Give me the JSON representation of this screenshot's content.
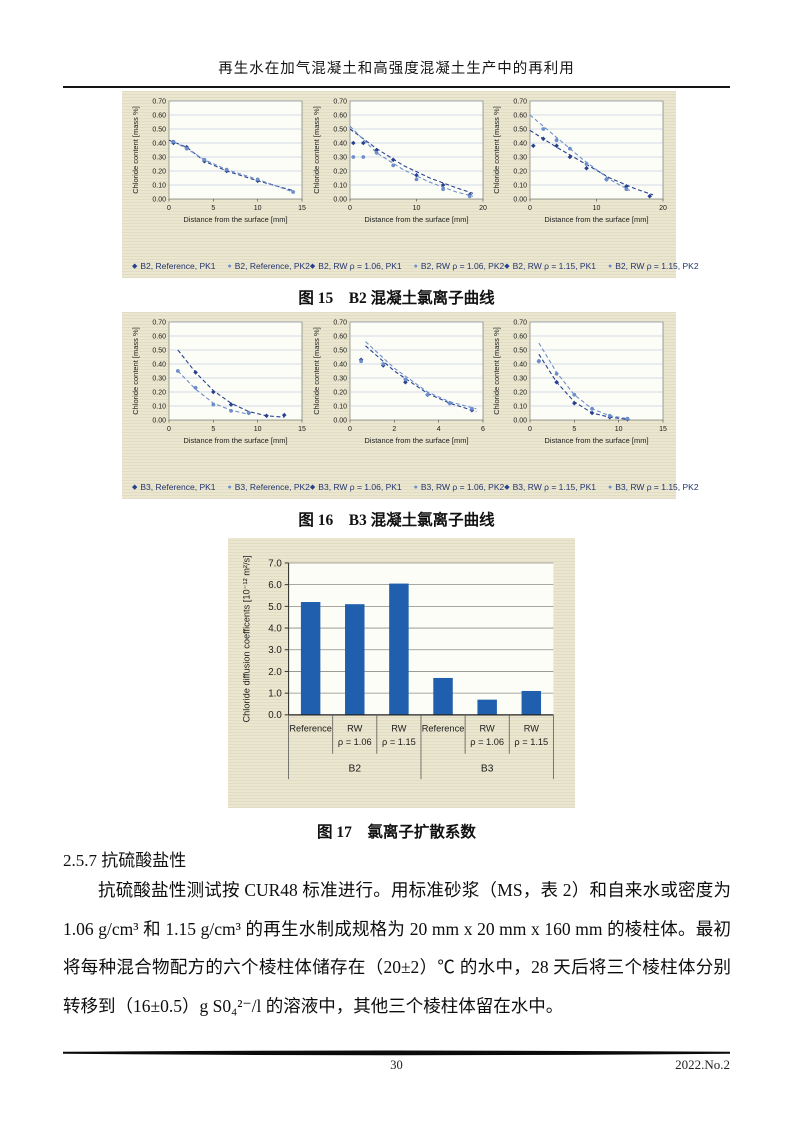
{
  "page": {
    "header_title": "再生水在加气混凝土和高强度混凝土生产中的再利用",
    "footer": {
      "page_number": "30",
      "issue": "2022.No.2"
    }
  },
  "figures": {
    "fig15": {
      "caption": "图 15　B2 混凝土氯离子曲线"
    },
    "fig16": {
      "caption": "图 16　B3 混凝土氯离子曲线"
    },
    "fig17": {
      "caption": "图 17　氯离子扩散系数"
    }
  },
  "section": {
    "heading": "2.5.7 抗硫酸盐性",
    "paragraph": "抗硫酸盐性测试按 CUR48 标准进行。用标准砂浆（MS，表 2）和自来水或密度为 1.06 g/cm³ 和 1.15 g/cm³ 的再生水制成规格为 20 mm x 20 mm x 160 mm 的棱柱体。最初将每种混合物配方的六个棱柱体储存在（20±2）℃ 的水中，28 天后将三个棱柱体分别转移到（16±0.5）g S0₄²⁻/l 的溶液中，其他三个棱柱体留在水中。"
  },
  "colors": {
    "pk1_series": "#27418f",
    "pk2_series": "#6d8ec9",
    "bar_blue": "#1f5fae",
    "panel_beige": "#eae6cf"
  },
  "chart_data": [
    {
      "type": "scatter",
      "xlabel": "Distance from the surface [mm]",
      "ylabel": "Chloride content [mass %]",
      "xlim": [
        0,
        15
      ],
      "xticks": [
        0,
        5,
        10,
        15
      ],
      "ylim": [
        0,
        0.7
      ],
      "yticks": [
        0.0,
        0.1,
        0.2,
        0.3,
        0.4,
        0.5,
        0.6,
        0.7
      ],
      "series": [
        {
          "name": "B2, Reference, PK1",
          "marker": "diamond",
          "color": "#27418f",
          "points": [
            [
              0.5,
              0.4
            ],
            [
              2,
              0.37
            ],
            [
              4,
              0.27
            ],
            [
              6.5,
              0.2
            ],
            [
              10,
              0.13
            ]
          ],
          "line": [
            [
              0,
              0.42
            ],
            [
              2,
              0.37
            ],
            [
              4,
              0.27
            ],
            [
              6.5,
              0.2
            ],
            [
              10,
              0.13
            ],
            [
              14,
              0.06
            ]
          ]
        },
        {
          "name": "B2, Reference, PK2",
          "marker": "circle",
          "color": "#6d8ec9",
          "points": [
            [
              0.5,
              0.41
            ],
            [
              2,
              0.36
            ],
            [
              4,
              0.28
            ],
            [
              6.5,
              0.21
            ],
            [
              10,
              0.14
            ],
            [
              14,
              0.05
            ]
          ]
        }
      ]
    },
    {
      "type": "scatter",
      "xlabel": "Distance from the surface [mm]",
      "ylabel": "Chloride content [mass %]",
      "xlim": [
        0,
        20
      ],
      "xticks": [
        0,
        10,
        20
      ],
      "ylim": [
        0,
        0.7
      ],
      "yticks": [
        0.0,
        0.1,
        0.2,
        0.3,
        0.4,
        0.5,
        0.6,
        0.7
      ],
      "series": [
        {
          "name": "B2, RW ρ = 1.06, PK1",
          "marker": "diamond",
          "color": "#27418f",
          "points": [
            [
              0.5,
              0.4
            ],
            [
              2,
              0.4
            ],
            [
              4,
              0.35
            ],
            [
              6.5,
              0.28
            ],
            [
              10,
              0.17
            ],
            [
              14,
              0.1
            ],
            [
              18,
              0.03
            ]
          ],
          "line": [
            [
              0,
              0.5
            ],
            [
              4,
              0.36
            ],
            [
              8,
              0.24
            ],
            [
              12,
              0.15
            ],
            [
              16,
              0.08
            ],
            [
              18.5,
              0.04
            ]
          ]
        },
        {
          "name": "B2, RW ρ = 1.06, PK2",
          "marker": "circle",
          "color": "#6d8ec9",
          "points": [
            [
              0.5,
              0.3
            ],
            [
              2,
              0.3
            ],
            [
              4,
              0.33
            ],
            [
              6.5,
              0.24
            ],
            [
              10,
              0.14
            ],
            [
              14,
              0.07
            ],
            [
              18,
              0.02
            ]
          ],
          "line": [
            [
              0,
              0.52
            ],
            [
              4,
              0.33
            ],
            [
              8,
              0.21
            ],
            [
              12,
              0.12
            ],
            [
              16,
              0.05
            ],
            [
              18.5,
              0.02
            ]
          ]
        }
      ]
    },
    {
      "type": "scatter",
      "xlabel": "Distance from the surface [mm]",
      "ylabel": "Chloride content [mass %]",
      "xlim": [
        0,
        20
      ],
      "xticks": [
        0,
        10,
        20
      ],
      "ylim": [
        0,
        0.7
      ],
      "yticks": [
        0.0,
        0.1,
        0.2,
        0.3,
        0.4,
        0.5,
        0.6,
        0.7
      ],
      "series": [
        {
          "name": "B2, RW ρ = 1.15, PK1",
          "marker": "diamond",
          "color": "#27418f",
          "points": [
            [
              0.5,
              0.38
            ],
            [
              2,
              0.43
            ],
            [
              4,
              0.38
            ],
            [
              6,
              0.3
            ],
            [
              8.5,
              0.22
            ],
            [
              11.5,
              0.14
            ],
            [
              14.5,
              0.09
            ],
            [
              18,
              0.02
            ]
          ],
          "line": [
            [
              0,
              0.49
            ],
            [
              4,
              0.37
            ],
            [
              8,
              0.26
            ],
            [
              12,
              0.15
            ],
            [
              16,
              0.07
            ],
            [
              18.5,
              0.03
            ]
          ]
        },
        {
          "name": "B2, RW  ρ = 1.15, PK2",
          "marker": "circle",
          "color": "#6d8ec9",
          "points": [
            [
              2,
              0.5
            ],
            [
              4,
              0.42
            ],
            [
              6,
              0.36
            ],
            [
              8.5,
              0.25
            ],
            [
              11.5,
              0.14
            ],
            [
              14.5,
              0.07
            ]
          ],
          "line": [
            [
              0,
              0.6
            ],
            [
              4,
              0.44
            ],
            [
              8,
              0.28
            ],
            [
              12,
              0.14
            ],
            [
              15,
              0.06
            ]
          ]
        }
      ]
    },
    {
      "type": "scatter",
      "xlabel": "Distance from the surface [mm]",
      "ylabel": "Chloride content [mass %]",
      "xlim": [
        0,
        15
      ],
      "xticks": [
        0,
        5,
        10,
        15
      ],
      "ylim": [
        0,
        0.7
      ],
      "yticks": [
        0.0,
        0.1,
        0.2,
        0.3,
        0.4,
        0.5,
        0.6,
        0.7
      ],
      "series": [
        {
          "name": "B3, Reference, PK1",
          "marker": "diamond",
          "color": "#27418f",
          "points": [
            [
              3,
              0.34
            ],
            [
              5,
              0.2
            ],
            [
              7,
              0.11
            ],
            [
              9,
              0.05
            ],
            [
              11,
              0.03
            ],
            [
              13,
              0.035
            ]
          ],
          "line": [
            [
              1,
              0.5
            ],
            [
              3,
              0.34
            ],
            [
              5,
              0.21
            ],
            [
              7,
              0.12
            ],
            [
              9,
              0.06
            ],
            [
              11,
              0.03
            ],
            [
              13,
              0.02
            ]
          ]
        },
        {
          "name": "B3, Reference, PK2",
          "marker": "circle",
          "color": "#6d8ec9",
          "points": [
            [
              1,
              0.35
            ],
            [
              3,
              0.23
            ],
            [
              5,
              0.11
            ],
            [
              7,
              0.065
            ],
            [
              9,
              0.05
            ]
          ],
          "line": [
            [
              1,
              0.35
            ],
            [
              3,
              0.22
            ],
            [
              5,
              0.12
            ],
            [
              7,
              0.07
            ],
            [
              9,
              0.04
            ]
          ]
        }
      ]
    },
    {
      "type": "scatter",
      "xlabel": "Distance from the surface [mm]",
      "ylabel": "Chloride content [mass %]",
      "xlim": [
        0,
        6
      ],
      "xticks": [
        0,
        2,
        4,
        6
      ],
      "ylim": [
        0,
        0.7
      ],
      "yticks": [
        0.0,
        0.1,
        0.2,
        0.3,
        0.4,
        0.5,
        0.6,
        0.7
      ],
      "series": [
        {
          "name": "B3, RW ρ = 1.06, PK1",
          "marker": "diamond",
          "color": "#27418f",
          "points": [
            [
              0.5,
              0.43
            ],
            [
              1.5,
              0.39
            ],
            [
              2.5,
              0.27
            ],
            [
              3.5,
              0.18
            ],
            [
              4.5,
              0.12
            ],
            [
              5.5,
              0.07
            ]
          ],
          "line": [
            [
              0.7,
              0.53
            ],
            [
              2,
              0.35
            ],
            [
              3.5,
              0.19
            ],
            [
              4.5,
              0.12
            ],
            [
              5.7,
              0.06
            ]
          ]
        },
        {
          "name": "B3, RW ρ = 1.06, PK2",
          "marker": "circle",
          "color": "#6d8ec9",
          "points": [
            [
              0.5,
              0.42
            ],
            [
              1.5,
              0.4
            ],
            [
              2.5,
              0.29
            ],
            [
              3.5,
              0.18
            ],
            [
              4.5,
              0.12
            ],
            [
              5.5,
              0.08
            ]
          ],
          "line": [
            [
              0.7,
              0.56
            ],
            [
              2,
              0.37
            ],
            [
              3.5,
              0.2
            ],
            [
              4.5,
              0.13
            ],
            [
              5.7,
              0.08
            ]
          ]
        }
      ]
    },
    {
      "type": "scatter",
      "xlabel": "Distance from the surface [mm]",
      "ylabel": "Chloride content [mass %]",
      "xlim": [
        0,
        15
      ],
      "xticks": [
        0,
        5,
        10,
        15
      ],
      "ylim": [
        0,
        0.7
      ],
      "yticks": [
        0.0,
        0.1,
        0.2,
        0.3,
        0.4,
        0.5,
        0.6,
        0.7
      ],
      "series": [
        {
          "name": "B3, RW ρ = 1.15, PK1",
          "marker": "diamond",
          "color": "#27418f",
          "points": [
            [
              1,
              0.42
            ],
            [
              3,
              0.27
            ],
            [
              5,
              0.12
            ],
            [
              7,
              0.05
            ],
            [
              9,
              0.02
            ],
            [
              11,
              0.005
            ]
          ],
          "line": [
            [
              1,
              0.47
            ],
            [
              3,
              0.27
            ],
            [
              5,
              0.13
            ],
            [
              7,
              0.05
            ],
            [
              9,
              0.02
            ],
            [
              11,
              0.005
            ]
          ]
        },
        {
          "name": "B3, RW ρ = 1.15, PK2",
          "marker": "circle",
          "color": "#6d8ec9",
          "points": [
            [
              1,
              0.42
            ],
            [
              3,
              0.33
            ],
            [
              5,
              0.18
            ],
            [
              7,
              0.08
            ],
            [
              9,
              0.03
            ],
            [
              11,
              0.01
            ]
          ],
          "line": [
            [
              1,
              0.55
            ],
            [
              3,
              0.34
            ],
            [
              5,
              0.18
            ],
            [
              7,
              0.08
            ],
            [
              9,
              0.03
            ],
            [
              11,
              0.01
            ]
          ]
        }
      ]
    },
    {
      "type": "bar",
      "ylabel": "Chloride diffusion coefficents [10⁻¹² m²/s]",
      "categories": [
        [
          "Reference"
        ],
        [
          "RW",
          "ρ = 1.06"
        ],
        [
          "RW",
          "ρ = 1.15"
        ],
        [
          "Reference"
        ],
        [
          "RW",
          "ρ = 1.06"
        ],
        [
          "RW",
          "ρ = 1.15"
        ]
      ],
      "values": [
        5.2,
        5.1,
        6.05,
        1.7,
        0.7,
        1.1
      ],
      "groups": [
        {
          "label": "B2",
          "span": 3
        },
        {
          "label": "B3",
          "span": 3
        }
      ],
      "ylim": [
        0,
        7.0
      ],
      "yticks": [
        0.0,
        1.0,
        2.0,
        3.0,
        4.0,
        5.0,
        6.0,
        7.0
      ],
      "bar_color": "#1f5fae"
    }
  ]
}
